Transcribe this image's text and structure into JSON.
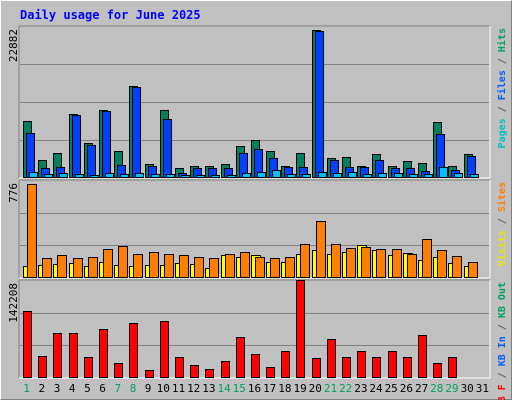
{
  "chart_data": {
    "title": "Daily usage for June 2025",
    "type": "bar",
    "x": {
      "days": [
        "1",
        "2",
        "3",
        "4",
        "5",
        "6",
        "7",
        "8",
        "9",
        "10",
        "11",
        "12",
        "13",
        "14",
        "15",
        "16",
        "17",
        "18",
        "19",
        "20",
        "21",
        "22",
        "23",
        "24",
        "25",
        "26",
        "27",
        "28",
        "29",
        "30",
        "31"
      ],
      "weekend_days": [
        "1",
        "7",
        "8",
        "14",
        "15",
        "21",
        "22",
        "28",
        "29"
      ]
    },
    "panels": [
      {
        "id": "hits",
        "ymax_label": "22882",
        "ymax": 22882,
        "legend": [
          {
            "text": "Pages",
            "color": "#00c0c0"
          },
          {
            "text": " / ",
            "color": "#606060"
          },
          {
            "text": "Files",
            "color": "#0060ff"
          },
          {
            "text": " / ",
            "color": "#606060"
          },
          {
            "text": "Hits",
            "color": "#00a060"
          }
        ],
        "series": [
          {
            "name": "Hits",
            "color": "#008060",
            "values": [
              8700,
              2700,
              3800,
              9900,
              5300,
              10400,
              4100,
              14100,
              2100,
              10400,
              1600,
              1800,
              1800,
              2100,
              4900,
              5800,
              4200,
              1900,
              3800,
              22800,
              3100,
              3300,
              1800,
              3700,
              1800,
              2600,
              2300,
              8600,
              1900,
              3700,
              0
            ]
          },
          {
            "name": "Files",
            "color": "#0040ff",
            "values": [
              6900,
              1600,
              1700,
              9700,
              5100,
              10300,
              2000,
              13900,
              1900,
              9000,
              800,
              1500,
              1500,
              1500,
              3900,
              4500,
              3000,
              1700,
              1700,
              22600,
              2800,
              1700,
              1700,
              2800,
              1500,
              1500,
              1000,
              6700,
              1200,
              3400,
              0
            ]
          },
          {
            "name": "Pages",
            "color": "#00c0ff",
            "values": [
              850,
              550,
              700,
              650,
              520,
              780,
              580,
              750,
              550,
              680,
              450,
              520,
              480,
              480,
              700,
              850,
              1300,
              600,
              550,
              950,
              750,
              850,
              600,
              750,
              720,
              550,
              620,
              1700,
              700,
              550,
              0
            ]
          }
        ]
      },
      {
        "id": "visits",
        "ymax_label": "776",
        "ymax": 776,
        "legend": [
          {
            "text": "Visits",
            "color": "#e8e800"
          },
          {
            "text": " / ",
            "color": "#606060"
          },
          {
            "text": "Sites",
            "color": "#ff8000"
          }
        ],
        "series": [
          {
            "name": "Visits",
            "color": "#ffff00",
            "values": [
              95,
              105,
              115,
              125,
              95,
              130,
              105,
              100,
              110,
              105,
              120,
              115,
              80,
              185,
              170,
              185,
              130,
              130,
              200,
              230,
              200,
              210,
              270,
              225,
              190,
              205,
              145,
              170,
              125,
              100,
              0
            ]
          },
          {
            "name": "Sites",
            "color": "#ff8000",
            "values": [
              770,
              165,
              185,
              160,
              170,
              240,
              265,
              195,
              210,
              200,
              185,
              170,
              160,
              200,
              210,
              170,
              165,
              170,
              280,
              465,
              280,
              245,
              255,
              235,
              240,
              195,
              320,
              225,
              180,
              130,
              0
            ]
          }
        ]
      },
      {
        "id": "kbytes",
        "ymax_label": "142208",
        "ymax": 142208,
        "legend": [
          {
            "text": "KB F",
            "color": "#ff0000"
          },
          {
            "text": " / ",
            "color": "#606060"
          },
          {
            "text": "KB In",
            "color": "#0060ff"
          },
          {
            "text": " / ",
            "color": "#606060"
          },
          {
            "text": "KB Out",
            "color": "#00a060"
          }
        ],
        "series": [
          {
            "name": "KB F",
            "color": "#ff0000",
            "values": [
              101000,
              33000,
              68000,
              67000,
              31000,
              73000,
              22000,
              83000,
              12000,
              85000,
              32000,
              19000,
              13000,
              26000,
              62000,
              36000,
              16000,
              41000,
              146000,
              30000,
              59000,
              32000,
              41000,
              32000,
              40000,
              31000,
              64000,
              22000,
              32000,
              0,
              0
            ]
          }
        ]
      }
    ]
  }
}
